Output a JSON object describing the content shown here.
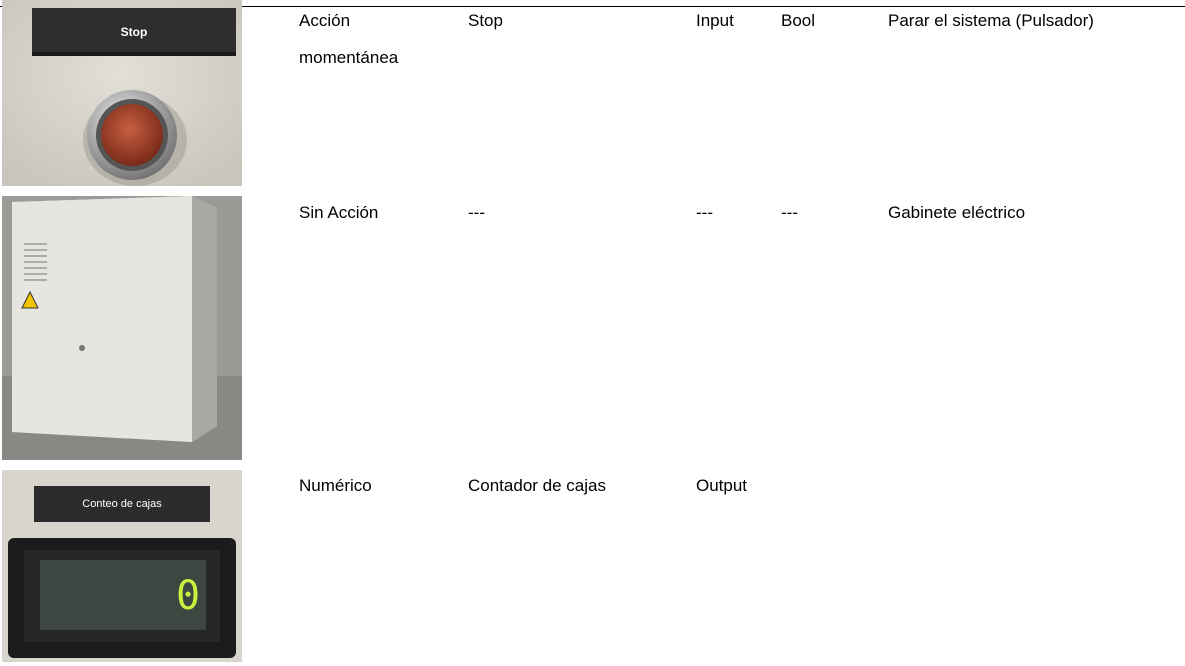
{
  "table": {
    "rows": [
      {
        "image_label": "Stop",
        "action": "Acción momentánea",
        "name": "Stop",
        "direction": "Input",
        "type": "Bool",
        "description": "Parar el sistema (Pulsador)"
      },
      {
        "action": "Sin Acción",
        "name": "---",
        "direction": "---",
        "type": "---",
        "description": "Gabinete eléctrico"
      },
      {
        "image_label": "Conteo de cajas",
        "display": "0",
        "action": "Numérico",
        "name": "Contador de cajas",
        "direction": "Output"
      }
    ]
  }
}
